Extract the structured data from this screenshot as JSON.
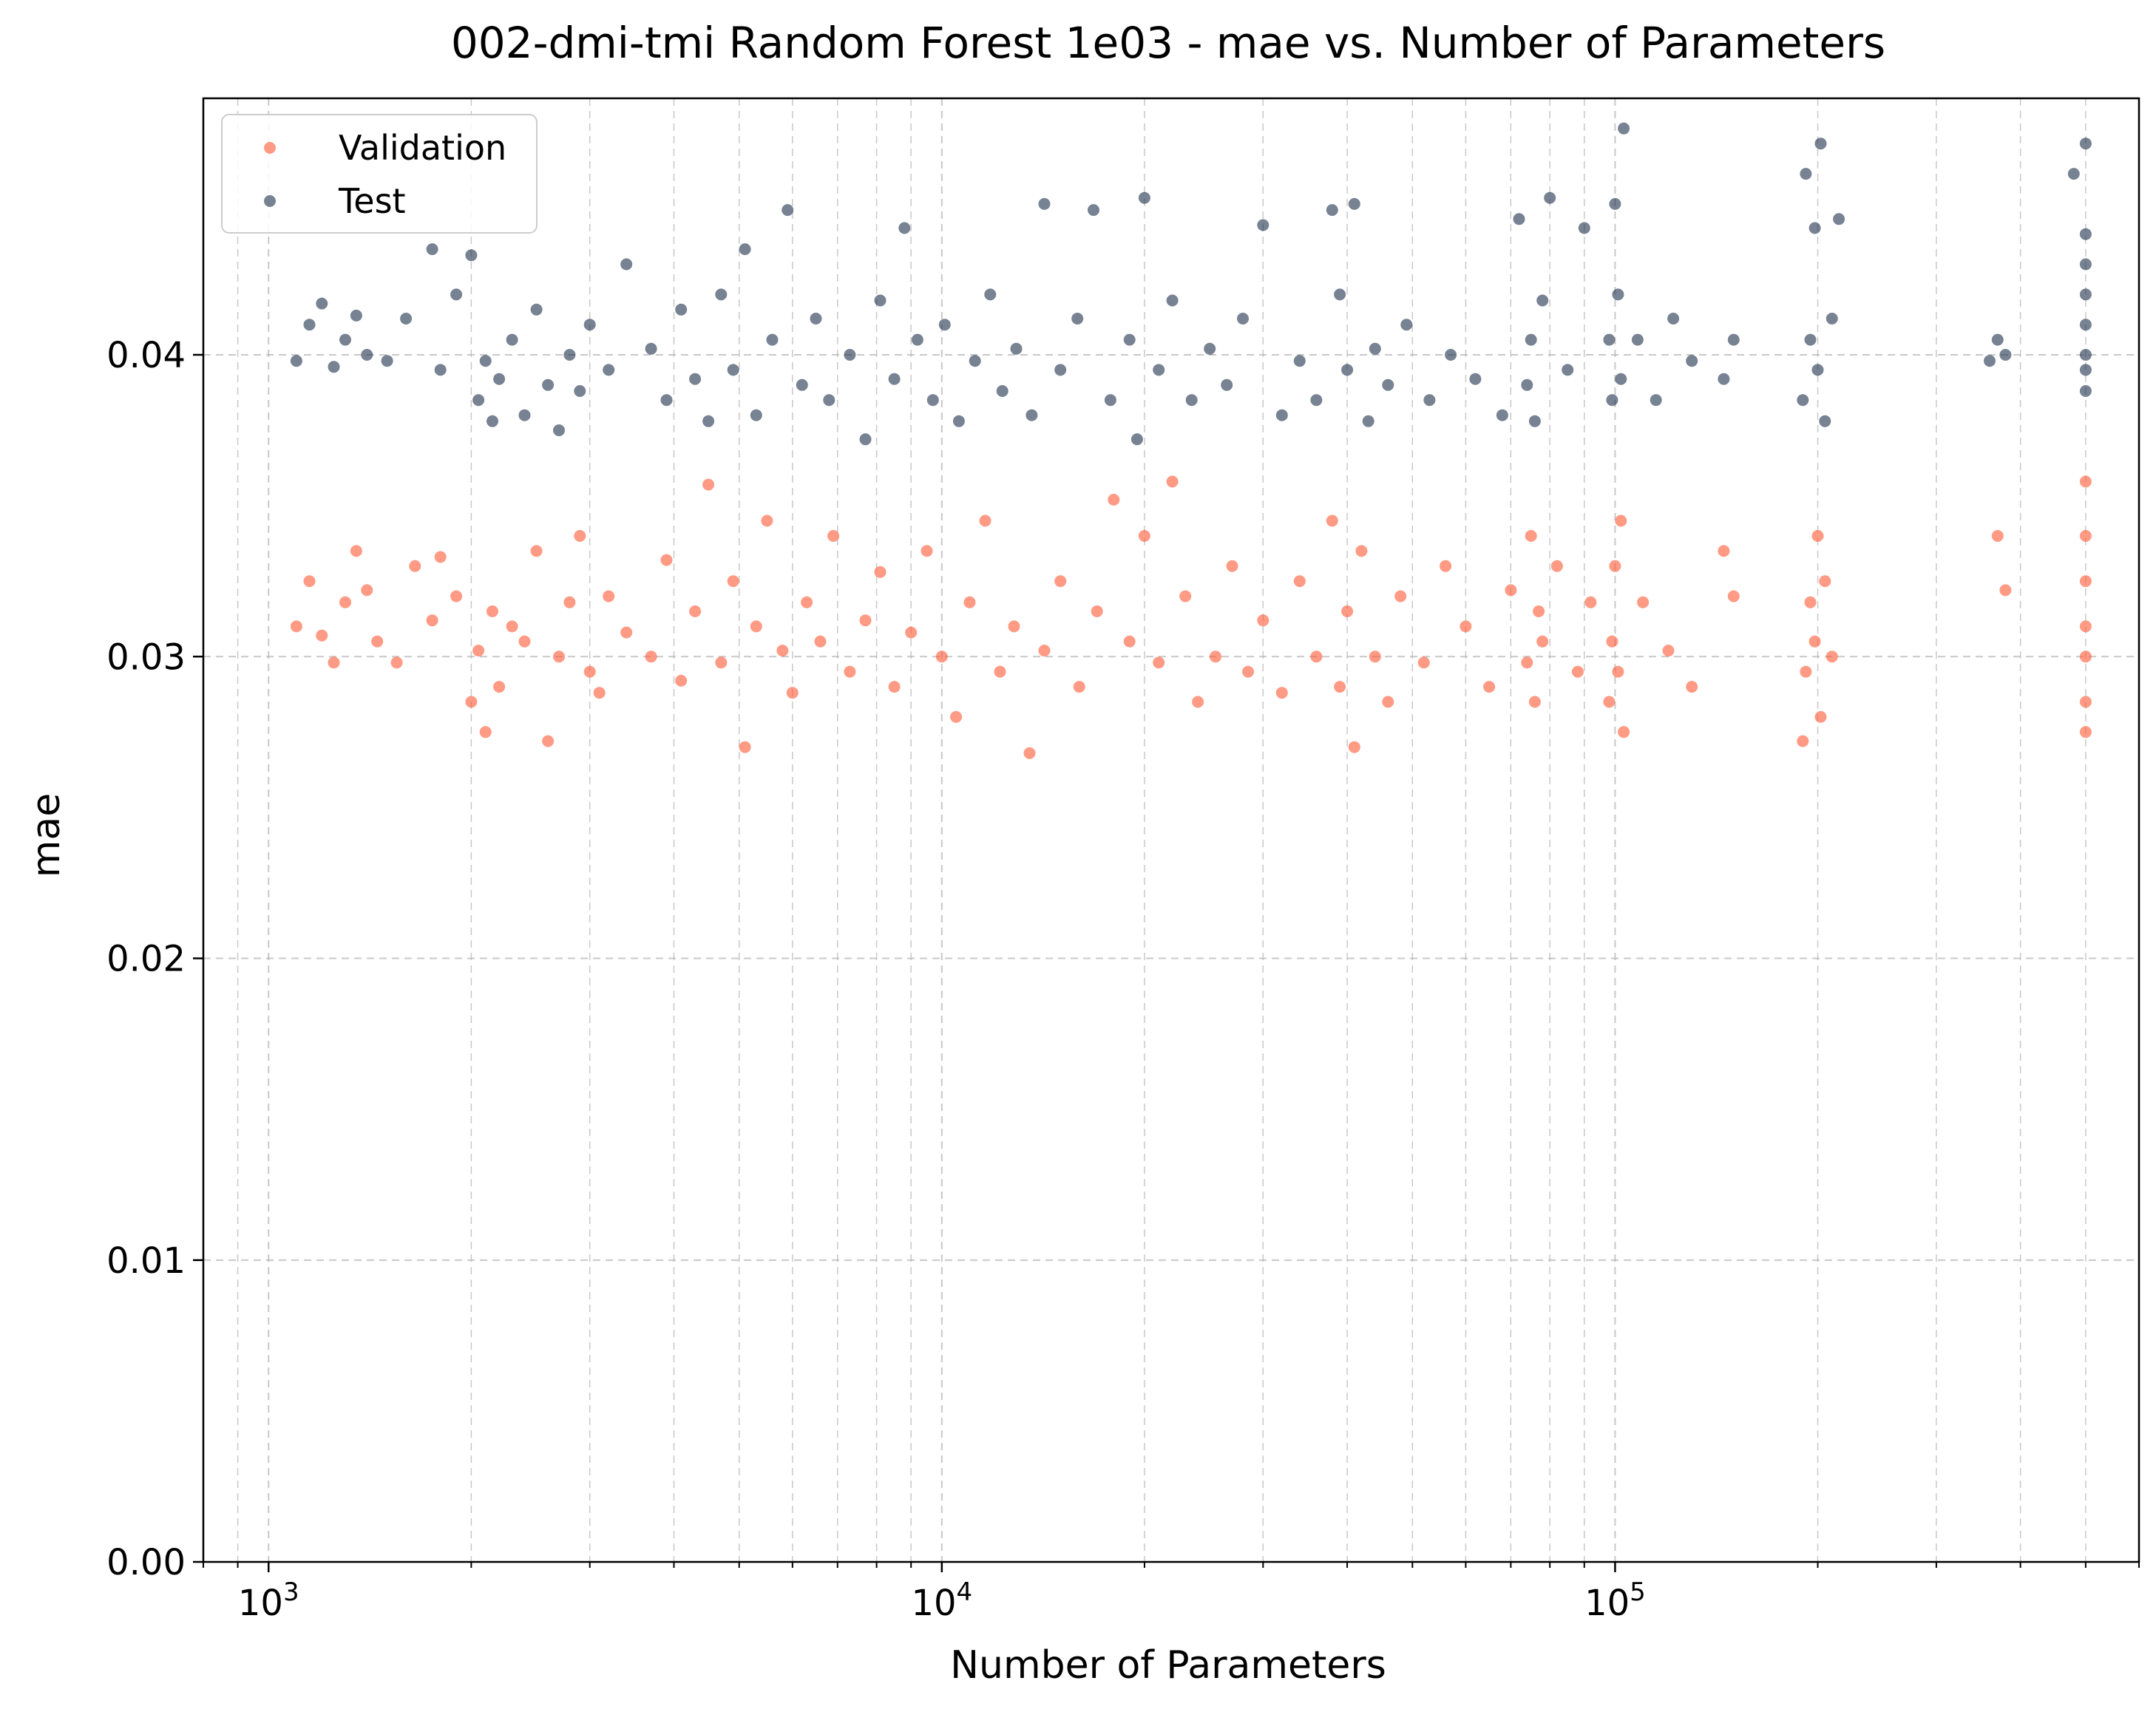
{
  "chart_data": {
    "type": "scatter",
    "title": "002-dmi-tmi Random Forest 1e03 - mae vs. Number of Parameters",
    "xlabel": "Number of Parameters",
    "ylabel": "mae",
    "x_scale": "log",
    "xlim": [
      800,
      600000
    ],
    "ylim": [
      0,
      0.0485
    ],
    "x_ticks": [
      {
        "value": 1000,
        "base": "10",
        "exp": "3"
      },
      {
        "value": 10000,
        "base": "10",
        "exp": "4"
      },
      {
        "value": 100000,
        "base": "10",
        "exp": "5"
      }
    ],
    "y_ticks": [
      {
        "value": 0.0,
        "label": "0.00"
      },
      {
        "value": 0.01,
        "label": "0.01"
      },
      {
        "value": 0.02,
        "label": "0.02"
      },
      {
        "value": 0.03,
        "label": "0.03"
      },
      {
        "value": 0.04,
        "label": "0.04"
      }
    ],
    "grid": true,
    "legend_position": "top-left",
    "series": [
      {
        "name": "Validation",
        "color": "#ff5733",
        "points": [
          [
            1100,
            0.031
          ],
          [
            1150,
            0.0325
          ],
          [
            1200,
            0.0307
          ],
          [
            1250,
            0.0298
          ],
          [
            1300,
            0.0318
          ],
          [
            1350,
            0.0335
          ],
          [
            1400,
            0.0322
          ],
          [
            1450,
            0.0305
          ],
          [
            1550,
            0.0298
          ],
          [
            1650,
            0.033
          ],
          [
            1750,
            0.0312
          ],
          [
            1800,
            0.0333
          ],
          [
            1900,
            0.032
          ],
          [
            2000,
            0.0285
          ],
          [
            2050,
            0.0302
          ],
          [
            2100,
            0.0275
          ],
          [
            2150,
            0.0315
          ],
          [
            2200,
            0.029
          ],
          [
            2300,
            0.031
          ],
          [
            2400,
            0.0305
          ],
          [
            2500,
            0.0335
          ],
          [
            2600,
            0.0272
          ],
          [
            2700,
            0.03
          ],
          [
            2800,
            0.0318
          ],
          [
            2900,
            0.034
          ],
          [
            3000,
            0.0295
          ],
          [
            3100,
            0.0288
          ],
          [
            3200,
            0.032
          ],
          [
            3400,
            0.0308
          ],
          [
            3700,
            0.03
          ],
          [
            3900,
            0.0332
          ],
          [
            4100,
            0.0292
          ],
          [
            4300,
            0.0315
          ],
          [
            4500,
            0.0357
          ],
          [
            4700,
            0.0298
          ],
          [
            4900,
            0.0325
          ],
          [
            5100,
            0.027
          ],
          [
            5300,
            0.031
          ],
          [
            5500,
            0.0345
          ],
          [
            5800,
            0.0302
          ],
          [
            6000,
            0.0288
          ],
          [
            6300,
            0.0318
          ],
          [
            6600,
            0.0305
          ],
          [
            6900,
            0.034
          ],
          [
            7300,
            0.0295
          ],
          [
            7700,
            0.0312
          ],
          [
            8100,
            0.0328
          ],
          [
            8500,
            0.029
          ],
          [
            9000,
            0.0308
          ],
          [
            9500,
            0.0335
          ],
          [
            10000,
            0.03
          ],
          [
            10500,
            0.028
          ],
          [
            11000,
            0.0318
          ],
          [
            11600,
            0.0345
          ],
          [
            12200,
            0.0295
          ],
          [
            12800,
            0.031
          ],
          [
            13500,
            0.0268
          ],
          [
            14200,
            0.0302
          ],
          [
            15000,
            0.0325
          ],
          [
            16000,
            0.029
          ],
          [
            17000,
            0.0315
          ],
          [
            18000,
            0.0352
          ],
          [
            19000,
            0.0305
          ],
          [
            20000,
            0.034
          ],
          [
            21000,
            0.0298
          ],
          [
            22000,
            0.0358
          ],
          [
            23000,
            0.032
          ],
          [
            24000,
            0.0285
          ],
          [
            25500,
            0.03
          ],
          [
            27000,
            0.033
          ],
          [
            28500,
            0.0295
          ],
          [
            30000,
            0.0312
          ],
          [
            32000,
            0.0288
          ],
          [
            34000,
            0.0325
          ],
          [
            36000,
            0.03
          ],
          [
            38000,
            0.0345
          ],
          [
            39000,
            0.029
          ],
          [
            40000,
            0.0315
          ],
          [
            41000,
            0.027
          ],
          [
            42000,
            0.0335
          ],
          [
            44000,
            0.03
          ],
          [
            46000,
            0.0285
          ],
          [
            48000,
            0.032
          ],
          [
            52000,
            0.0298
          ],
          [
            56000,
            0.033
          ],
          [
            60000,
            0.031
          ],
          [
            65000,
            0.029
          ],
          [
            70000,
            0.0322
          ],
          [
            74000,
            0.0298
          ],
          [
            75000,
            0.034
          ],
          [
            76000,
            0.0285
          ],
          [
            77000,
            0.0315
          ],
          [
            78000,
            0.0305
          ],
          [
            82000,
            0.033
          ],
          [
            88000,
            0.0295
          ],
          [
            92000,
            0.0318
          ],
          [
            98000,
            0.0285
          ],
          [
            99000,
            0.0305
          ],
          [
            100000,
            0.033
          ],
          [
            101000,
            0.0295
          ],
          [
            102000,
            0.0345
          ],
          [
            103000,
            0.0275
          ],
          [
            110000,
            0.0318
          ],
          [
            120000,
            0.0302
          ],
          [
            130000,
            0.029
          ],
          [
            145000,
            0.0335
          ],
          [
            150000,
            0.032
          ],
          [
            190000,
            0.0272
          ],
          [
            192000,
            0.0295
          ],
          [
            195000,
            0.0318
          ],
          [
            198000,
            0.0305
          ],
          [
            200000,
            0.034
          ],
          [
            202000,
            0.028
          ],
          [
            205000,
            0.0325
          ],
          [
            210000,
            0.03
          ],
          [
            370000,
            0.034
          ],
          [
            380000,
            0.0322
          ],
          [
            500000,
            0.03
          ],
          [
            500000,
            0.0275
          ],
          [
            500000,
            0.0285
          ],
          [
            500000,
            0.031
          ],
          [
            500000,
            0.0325
          ],
          [
            500000,
            0.034
          ],
          [
            500000,
            0.0358
          ]
        ]
      },
      {
        "name": "Test",
        "color": "#1c2e4a",
        "points": [
          [
            1100,
            0.0398
          ],
          [
            1150,
            0.041
          ],
          [
            1200,
            0.0417
          ],
          [
            1250,
            0.0396
          ],
          [
            1300,
            0.0405
          ],
          [
            1350,
            0.0413
          ],
          [
            1400,
            0.04
          ],
          [
            1500,
            0.0398
          ],
          [
            1600,
            0.0412
          ],
          [
            1750,
            0.0435
          ],
          [
            1800,
            0.0395
          ],
          [
            1900,
            0.042
          ],
          [
            2000,
            0.0433
          ],
          [
            2050,
            0.0385
          ],
          [
            2100,
            0.0398
          ],
          [
            2150,
            0.0378
          ],
          [
            2200,
            0.0392
          ],
          [
            2300,
            0.0405
          ],
          [
            2400,
            0.038
          ],
          [
            2500,
            0.0415
          ],
          [
            2600,
            0.039
          ],
          [
            2700,
            0.0375
          ],
          [
            2800,
            0.04
          ],
          [
            2900,
            0.0388
          ],
          [
            3000,
            0.041
          ],
          [
            3200,
            0.0395
          ],
          [
            3400,
            0.043
          ],
          [
            3700,
            0.0402
          ],
          [
            3900,
            0.0385
          ],
          [
            4100,
            0.0415
          ],
          [
            4300,
            0.0392
          ],
          [
            4500,
            0.0378
          ],
          [
            4700,
            0.042
          ],
          [
            4900,
            0.0395
          ],
          [
            5100,
            0.0435
          ],
          [
            5300,
            0.038
          ],
          [
            5600,
            0.0405
          ],
          [
            5900,
            0.0448
          ],
          [
            6200,
            0.039
          ],
          [
            6500,
            0.0412
          ],
          [
            6800,
            0.0385
          ],
          [
            7300,
            0.04
          ],
          [
            7700,
            0.0372
          ],
          [
            8100,
            0.0418
          ],
          [
            8500,
            0.0392
          ],
          [
            8800,
            0.0442
          ],
          [
            9200,
            0.0405
          ],
          [
            9700,
            0.0385
          ],
          [
            10100,
            0.041
          ],
          [
            10600,
            0.0378
          ],
          [
            11200,
            0.0398
          ],
          [
            11800,
            0.042
          ],
          [
            12300,
            0.0388
          ],
          [
            12900,
            0.0402
          ],
          [
            13600,
            0.038
          ],
          [
            14200,
            0.045
          ],
          [
            15000,
            0.0395
          ],
          [
            15900,
            0.0412
          ],
          [
            16800,
            0.0448
          ],
          [
            17800,
            0.0385
          ],
          [
            19000,
            0.0405
          ],
          [
            19500,
            0.0372
          ],
          [
            20000,
            0.0452
          ],
          [
            21000,
            0.0395
          ],
          [
            22000,
            0.0418
          ],
          [
            23500,
            0.0385
          ],
          [
            25000,
            0.0402
          ],
          [
            26500,
            0.039
          ],
          [
            28000,
            0.0412
          ],
          [
            30000,
            0.0443
          ],
          [
            32000,
            0.038
          ],
          [
            34000,
            0.0398
          ],
          [
            36000,
            0.0385
          ],
          [
            38000,
            0.0448
          ],
          [
            39000,
            0.042
          ],
          [
            40000,
            0.0395
          ],
          [
            41000,
            0.045
          ],
          [
            43000,
            0.0378
          ],
          [
            44000,
            0.0402
          ],
          [
            46000,
            0.039
          ],
          [
            49000,
            0.041
          ],
          [
            53000,
            0.0385
          ],
          [
            57000,
            0.04
          ],
          [
            62000,
            0.0392
          ],
          [
            68000,
            0.038
          ],
          [
            72000,
            0.0445
          ],
          [
            74000,
            0.039
          ],
          [
            75000,
            0.0405
          ],
          [
            76000,
            0.0378
          ],
          [
            78000,
            0.0418
          ],
          [
            80000,
            0.0452
          ],
          [
            85000,
            0.0395
          ],
          [
            90000,
            0.0442
          ],
          [
            98000,
            0.0405
          ],
          [
            99000,
            0.0385
          ],
          [
            100000,
            0.045
          ],
          [
            101000,
            0.042
          ],
          [
            102000,
            0.0392
          ],
          [
            103000,
            0.0475
          ],
          [
            108000,
            0.0405
          ],
          [
            115000,
            0.0385
          ],
          [
            122000,
            0.0412
          ],
          [
            130000,
            0.0398
          ],
          [
            145000,
            0.0392
          ],
          [
            150000,
            0.0405
          ],
          [
            190000,
            0.0385
          ],
          [
            192000,
            0.046
          ],
          [
            195000,
            0.0405
          ],
          [
            198000,
            0.0442
          ],
          [
            200000,
            0.0395
          ],
          [
            202000,
            0.047
          ],
          [
            205000,
            0.0378
          ],
          [
            210000,
            0.0412
          ],
          [
            215000,
            0.0445
          ],
          [
            360000,
            0.0398
          ],
          [
            370000,
            0.0405
          ],
          [
            380000,
            0.04
          ],
          [
            480000,
            0.046
          ],
          [
            500000,
            0.047
          ],
          [
            500000,
            0.044
          ],
          [
            500000,
            0.042
          ],
          [
            500000,
            0.041
          ],
          [
            500000,
            0.04
          ],
          [
            500000,
            0.0395
          ],
          [
            500000,
            0.0388
          ],
          [
            500000,
            0.043
          ]
        ]
      }
    ]
  }
}
